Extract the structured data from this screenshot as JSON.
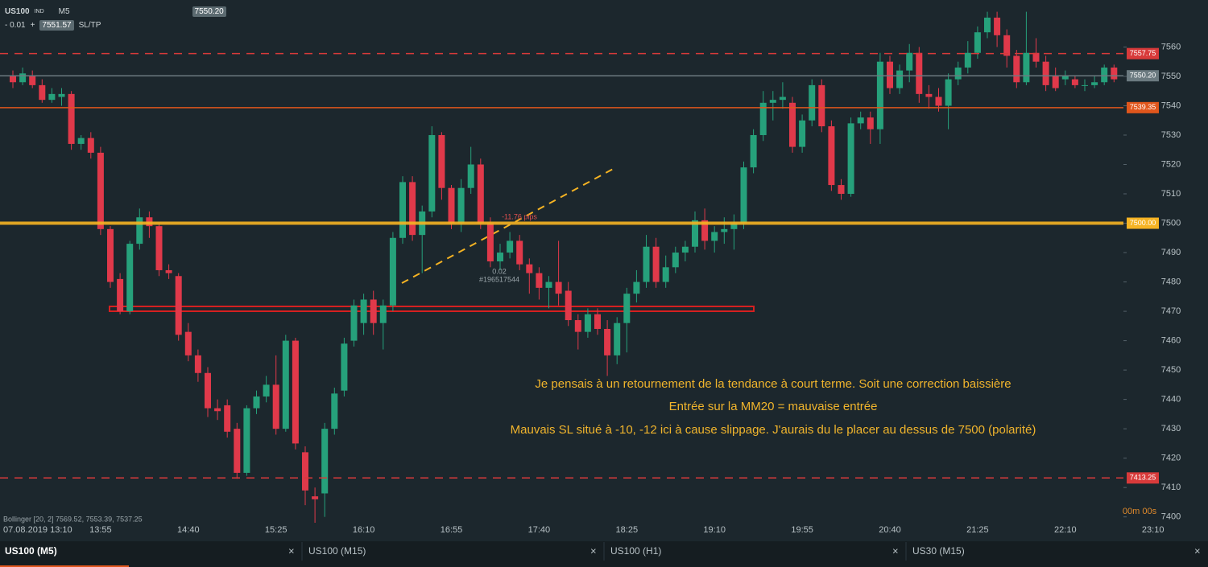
{
  "toolbar": {
    "symbol": "US100",
    "market": "IND",
    "timeframe": "M5",
    "bid": "7550.20",
    "spread": "- 0.01",
    "plus": "+",
    "ask": "7551.57",
    "sltp": "SL/TP"
  },
  "chart_data": {
    "type": "candlestick",
    "up_color": "#26a17b",
    "down_color": "#e0394a",
    "ohlc": [
      [
        7550,
        7552,
        7546,
        7548
      ],
      [
        7548,
        7553,
        7547,
        7551
      ],
      [
        7550,
        7552,
        7546,
        7547
      ],
      [
        7547,
        7549,
        7541,
        7542
      ],
      [
        7542,
        7546,
        7541,
        7544
      ],
      [
        7543,
        7546,
        7540,
        7544
      ],
      [
        7544,
        7545,
        7525,
        7527
      ],
      [
        7527,
        7530,
        7525,
        7529
      ],
      [
        7529,
        7531,
        7522,
        7524
      ],
      [
        7524,
        7526,
        7496,
        7498
      ],
      [
        7498,
        7499,
        7478,
        7480
      ],
      [
        7481,
        7483,
        7469,
        7470
      ],
      [
        7470,
        7494,
        7469,
        7493
      ],
      [
        7493,
        7505,
        7491,
        7502
      ],
      [
        7502,
        7504,
        7495,
        7499
      ],
      [
        7499,
        7500,
        7482,
        7484
      ],
      [
        7484,
        7486,
        7481,
        7483
      ],
      [
        7482,
        7483,
        7460,
        7462
      ],
      [
        7463,
        7466,
        7453,
        7455
      ],
      [
        7455,
        7457,
        7446,
        7449
      ],
      [
        7449,
        7451,
        7434,
        7437
      ],
      [
        7437,
        7440,
        7433,
        7436
      ],
      [
        7438,
        7440,
        7427,
        7429
      ],
      [
        7430,
        7432,
        7413,
        7415
      ],
      [
        7415,
        7438,
        7414,
        7437
      ],
      [
        7437,
        7443,
        7435,
        7441
      ],
      [
        7441,
        7448,
        7439,
        7445
      ],
      [
        7445,
        7455,
        7428,
        7430
      ],
      [
        7430,
        7462,
        7429,
        7460
      ],
      [
        7460,
        7461,
        7423,
        7425
      ],
      [
        7422,
        7424,
        7404,
        7409
      ],
      [
        7407,
        7410,
        7398,
        7406
      ],
      [
        7408,
        7432,
        7400,
        7430
      ],
      [
        7430,
        7444,
        7428,
        7442
      ],
      [
        7443,
        7461,
        7441,
        7459
      ],
      [
        7460,
        7474,
        7458,
        7472
      ],
      [
        7466,
        7476,
        7462,
        7474
      ],
      [
        7474,
        7477,
        7462,
        7466
      ],
      [
        7466,
        7474,
        7457,
        7472
      ],
      [
        7472,
        7497,
        7470,
        7495
      ],
      [
        7495,
        7516,
        7493,
        7514
      ],
      [
        7514,
        7516,
        7494,
        7496
      ],
      [
        7496,
        7506,
        7483,
        7504
      ],
      [
        7504,
        7533,
        7502,
        7530
      ],
      [
        7530,
        7531,
        7508,
        7512
      ],
      [
        7512,
        7513,
        7498,
        7500
      ],
      [
        7500,
        7515,
        7497,
        7512
      ],
      [
        7512,
        7526,
        7510,
        7520
      ],
      [
        7520,
        7522,
        7498,
        7500
      ],
      [
        7500,
        7502,
        7485,
        7487
      ],
      [
        7487,
        7493,
        7484,
        7490
      ],
      [
        7490,
        7497,
        7488,
        7494
      ],
      [
        7494,
        7496,
        7484,
        7486
      ],
      [
        7486,
        7488,
        7476,
        7483
      ],
      [
        7483,
        7485,
        7474,
        7478
      ],
      [
        7478,
        7482,
        7471,
        7480
      ],
      [
        7480,
        7494,
        7472,
        7476
      ],
      [
        7477,
        7480,
        7465,
        7467
      ],
      [
        7467,
        7469,
        7457,
        7463
      ],
      [
        7463,
        7471,
        7461,
        7469
      ],
      [
        7469,
        7471,
        7462,
        7464
      ],
      [
        7464,
        7467,
        7448,
        7455
      ],
      [
        7455,
        7468,
        7452,
        7466
      ],
      [
        7466,
        7478,
        7456,
        7476
      ],
      [
        7476,
        7484,
        7473,
        7480
      ],
      [
        7480,
        7496,
        7478,
        7492
      ],
      [
        7492,
        7495,
        7478,
        7480
      ],
      [
        7480,
        7489,
        7478,
        7485
      ],
      [
        7485,
        7492,
        7483,
        7490
      ],
      [
        7490,
        7494,
        7487,
        7492
      ],
      [
        7492,
        7504,
        7490,
        7501
      ],
      [
        7501,
        7505,
        7491,
        7494
      ],
      [
        7494,
        7499,
        7490,
        7497
      ],
      [
        7497,
        7502,
        7493,
        7498
      ],
      [
        7498,
        7503,
        7491,
        7500
      ],
      [
        7500,
        7521,
        7498,
        7519
      ],
      [
        7519,
        7532,
        7517,
        7530
      ],
      [
        7530,
        7545,
        7528,
        7541
      ],
      [
        7541,
        7545,
        7535,
        7542
      ],
      [
        7542,
        7548,
        7539,
        7543
      ],
      [
        7541,
        7543,
        7524,
        7526
      ],
      [
        7526,
        7537,
        7524,
        7535
      ],
      [
        7535,
        7549,
        7533,
        7547
      ],
      [
        7547,
        7549,
        7531,
        7533
      ],
      [
        7533,
        7535,
        7511,
        7513
      ],
      [
        7513,
        7515,
        7508,
        7510
      ],
      [
        7510,
        7536,
        7509,
        7534
      ],
      [
        7534,
        7538,
        7532,
        7536
      ],
      [
        7536,
        7538,
        7527,
        7532
      ],
      [
        7532,
        7558,
        7527,
        7555
      ],
      [
        7555,
        7557,
        7544,
        7546
      ],
      [
        7546,
        7554,
        7544,
        7552
      ],
      [
        7552,
        7561,
        7548,
        7558
      ],
      [
        7558,
        7560,
        7541,
        7544
      ],
      [
        7544,
        7547,
        7539,
        7543
      ],
      [
        7543,
        7546,
        7538,
        7540
      ],
      [
        7540,
        7551,
        7532,
        7549
      ],
      [
        7549,
        7555,
        7547,
        7553
      ],
      [
        7553,
        7562,
        7551,
        7558
      ],
      [
        7558,
        7567,
        7556,
        7565
      ],
      [
        7565,
        7572,
        7563,
        7570
      ],
      [
        7570,
        7572,
        7560,
        7564
      ],
      [
        7564,
        7566,
        7553,
        7557
      ],
      [
        7557,
        7559,
        7546,
        7548
      ],
      [
        7548,
        7572,
        7547,
        7558
      ],
      [
        7558,
        7563,
        7553,
        7555
      ],
      [
        7555,
        7557,
        7545,
        7547
      ],
      [
        7550,
        7553,
        7545,
        7546
      ],
      [
        7549,
        7552,
        7547,
        7550
      ],
      [
        7549,
        7550,
        7546,
        7547
      ],
      [
        7547,
        7549,
        7545,
        7547
      ],
      [
        7547,
        7550,
        7546,
        7548
      ],
      [
        7548,
        7554,
        7547,
        7553
      ],
      [
        7553,
        7554,
        7548,
        7549
      ]
    ],
    "ylim": [
      7398,
      7576
    ],
    "yticks": [
      7400,
      7410,
      7420,
      7430,
      7440,
      7450,
      7460,
      7470,
      7480,
      7490,
      7500,
      7510,
      7520,
      7530,
      7540,
      7550,
      7560
    ],
    "xtick_labels": [
      "07.08.2019 13:10",
      "13:55",
      "14:40",
      "15:25",
      "16:10",
      "16:55",
      "17:40",
      "18:25",
      "19:10",
      "19:55",
      "20:40",
      "21:25",
      "22:10",
      "23:10"
    ],
    "levels": [
      {
        "value": 7557.75,
        "label": "7557.75",
        "color": "#d83a3a",
        "style": "dashed"
      },
      {
        "value": 7550.2,
        "label": "7550.20",
        "color": "#6b7a80",
        "style": "solid"
      },
      {
        "value": 7539.35,
        "label": "7539.35",
        "color": "#e0561c",
        "style": "solid"
      },
      {
        "value": 7500,
        "label": "7500.00",
        "color": "#f5b323",
        "style": "thick"
      },
      {
        "value": 7413.25,
        "label": "7413.25",
        "color": "#d83a3a",
        "style": "dashed"
      }
    ],
    "trade_pips": "-11.76 pips",
    "trade_lot": "0.02",
    "trade_id": "#196517544",
    "annotations": [
      "Je pensais à un retournement de la tendance à court terme. Soit une correction baissière",
      "Entrée sur la MM20 = mauvaise entrée",
      "Mauvais SL situé à -10, -12 ici à cause slippage. J'aurais du le placer au dessus de 7500 (polarité)"
    ],
    "indicator": "Bollinger [20, 2] 7569.52, 7553.39, 7537.25",
    "timer": "00m 00s"
  },
  "tabs": [
    "US100 (M5)",
    "US100 (M15)",
    "US100 (H1)",
    "US30 (M15)"
  ],
  "tab_close": "×"
}
